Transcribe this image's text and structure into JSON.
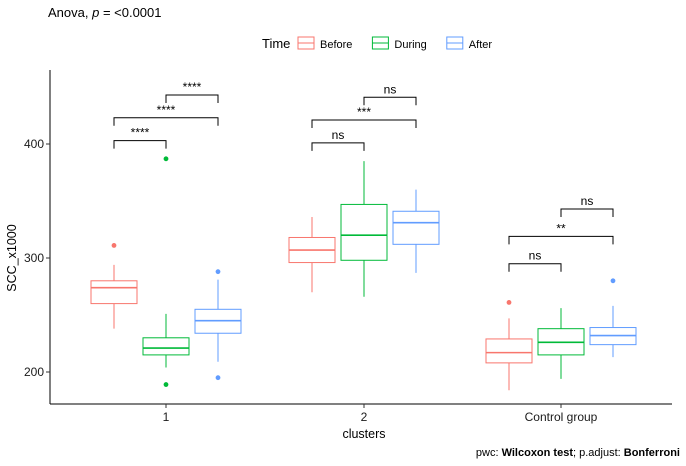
{
  "chart_data": {
    "type": "box",
    "title_prefix": "Anova, ",
    "title_p": "p",
    "title_suffix": " = <0.0001",
    "xlabel": "clusters",
    "ylabel": "SCC_x1000",
    "categories": [
      "1",
      "2",
      "Control group"
    ],
    "yticks": [
      200,
      300,
      400
    ],
    "ylim": [
      172,
      465
    ],
    "legend": {
      "title": "Time",
      "position": "top",
      "entries": [
        {
          "name": "Before",
          "color": "#F8766D"
        },
        {
          "name": "During",
          "color": "#00BA38"
        },
        {
          "name": "After",
          "color": "#619CFF"
        }
      ]
    },
    "series": [
      {
        "name": "Before",
        "color": "#F8766D",
        "boxes": [
          {
            "category": "1",
            "lower_whisker": 238,
            "q1": 260,
            "median": 274,
            "q3": 280,
            "upper_whisker": 294,
            "outliers": [
              311
            ]
          },
          {
            "category": "2",
            "lower_whisker": 270,
            "q1": 296,
            "median": 307,
            "q3": 318,
            "upper_whisker": 336,
            "outliers": []
          },
          {
            "category": "Control group",
            "lower_whisker": 184,
            "q1": 208,
            "median": 217,
            "q3": 229,
            "upper_whisker": 247,
            "outliers": [
              261
            ]
          }
        ]
      },
      {
        "name": "During",
        "color": "#00BA38",
        "boxes": [
          {
            "category": "1",
            "lower_whisker": 204,
            "q1": 215,
            "median": 221,
            "q3": 230,
            "upper_whisker": 251,
            "outliers": [
              387,
              189
            ]
          },
          {
            "category": "2",
            "lower_whisker": 266,
            "q1": 298,
            "median": 320,
            "q3": 347,
            "upper_whisker": 385,
            "outliers": []
          },
          {
            "category": "Control group",
            "lower_whisker": 194,
            "q1": 215,
            "median": 226,
            "q3": 238,
            "upper_whisker": 256,
            "outliers": []
          }
        ]
      },
      {
        "name": "After",
        "color": "#619CFF",
        "boxes": [
          {
            "category": "1",
            "lower_whisker": 209,
            "q1": 234,
            "median": 245,
            "q3": 255,
            "upper_whisker": 281,
            "outliers": [
              288,
              195
            ]
          },
          {
            "category": "2",
            "lower_whisker": 287,
            "q1": 312,
            "median": 331,
            "q3": 341,
            "upper_whisker": 360,
            "outliers": []
          },
          {
            "category": "Control group",
            "lower_whisker": 213,
            "q1": 224,
            "median": 232,
            "q3": 239,
            "upper_whisker": 258,
            "outliers": [
              280
            ]
          }
        ]
      }
    ],
    "significance_brackets": [
      {
        "category": "1",
        "from": "Before",
        "to": "During",
        "y": 403,
        "label": "****"
      },
      {
        "category": "1",
        "from": "Before",
        "to": "After",
        "y": 423,
        "label": "****"
      },
      {
        "category": "1",
        "from": "During",
        "to": "After",
        "y": 443,
        "label": "****"
      },
      {
        "category": "2",
        "from": "Before",
        "to": "During",
        "y": 401,
        "label": "ns"
      },
      {
        "category": "2",
        "from": "Before",
        "to": "After",
        "y": 421,
        "label": "***"
      },
      {
        "category": "2",
        "from": "During",
        "to": "After",
        "y": 441,
        "label": "ns"
      },
      {
        "category": "Control group",
        "from": "Before",
        "to": "During",
        "y": 295,
        "label": "ns"
      },
      {
        "category": "Control group",
        "from": "Before",
        "to": "After",
        "y": 319,
        "label": "**"
      },
      {
        "category": "Control group",
        "from": "During",
        "to": "After",
        "y": 343,
        "label": "ns"
      }
    ],
    "caption_prefix": "pwc: ",
    "caption_test": "Wilcoxon test",
    "caption_mid": "; p.adjust: ",
    "caption_method": "Bonferroni"
  }
}
